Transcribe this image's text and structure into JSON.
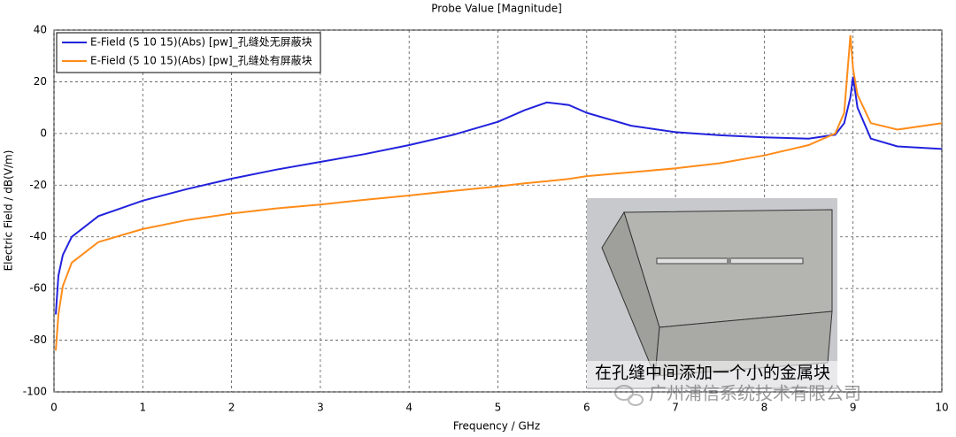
{
  "chart_data": {
    "type": "line",
    "title": "Probe Value [Magnitude]",
    "x_label": "Frequency / GHz",
    "y_label": "Electric Field / dB(V/m)",
    "x": [
      0.02,
      0.05,
      0.1,
      0.2,
      0.5,
      1,
      1.5,
      2,
      2.5,
      3,
      3.5,
      4,
      4.5,
      5,
      5.3,
      5.55,
      5.8,
      6,
      6.5,
      7,
      7.5,
      8,
      8.5,
      8.8,
      8.9,
      8.97,
      9.0,
      9.05,
      9.2,
      9.5,
      10
    ],
    "series": [
      {
        "name": "E-Field (5 10 15)(Abs) [pw]_孔缝处无屏蔽块",
        "color": "#2222dd",
        "values": [
          -70,
          -55,
          -47,
          -40,
          -32,
          -26,
          -21.5,
          -17.5,
          -14,
          -11,
          -8,
          -4.5,
          -0.5,
          4.5,
          9,
          12,
          11,
          8,
          3,
          0.5,
          -0.7,
          -1.5,
          -2,
          -0.5,
          4,
          14,
          22,
          10,
          -2,
          -5,
          -6
        ]
      },
      {
        "name": "E-Field (5 10 15)(Abs) [pw]_孔缝处有屏蔽块",
        "color": "#ff8c1a",
        "values": [
          -84,
          -70,
          -59,
          -50,
          -42,
          -37,
          -33.5,
          -31,
          -29,
          -27.5,
          -25.7,
          -24,
          -22.2,
          -20.5,
          -19.3,
          -18.5,
          -17.6,
          -16.5,
          -15,
          -13.5,
          -11.5,
          -8.5,
          -4.5,
          0,
          8,
          38,
          25,
          15,
          4,
          1.5,
          4
        ]
      }
    ],
    "xlim": [
      0,
      10
    ],
    "xticks": [
      0,
      1,
      2,
      3,
      4,
      5,
      6,
      7,
      8,
      9,
      10
    ],
    "ylim": [
      -100,
      40
    ],
    "yticks": [
      -100,
      -80,
      -60,
      -40,
      -20,
      0,
      20,
      40
    ],
    "grid": true,
    "legend": "upper left",
    "annotations": [
      "在孔缝中间添加一个小的金属块",
      "广州浦信系统技术有限公司"
    ]
  }
}
